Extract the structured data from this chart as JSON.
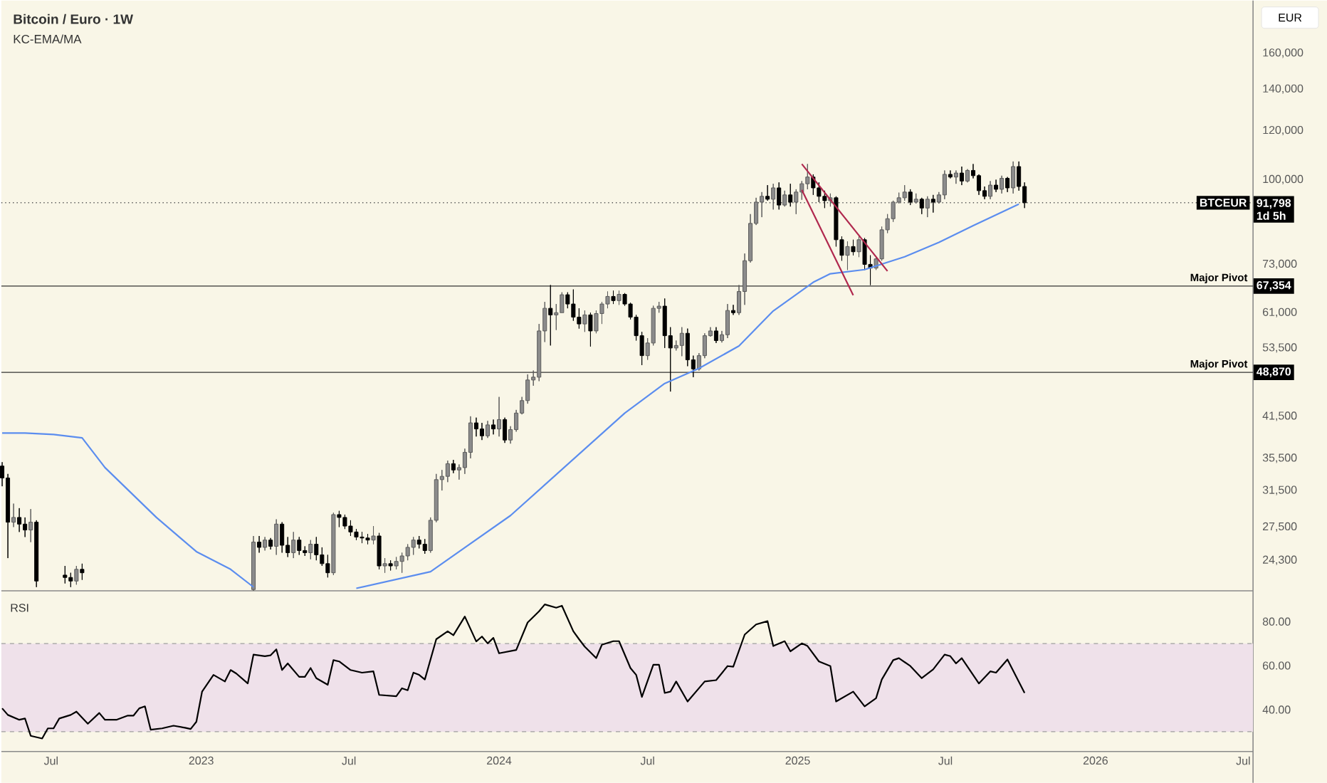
{
  "chart_data": [
    {
      "type": "candlestick",
      "title": "Bitcoin / Euro · 1W",
      "subtitle": "KC-EMA/MA",
      "ylabel": "EUR",
      "log": true,
      "tick_labels": "y",
      "xlim": [
        "2022-05-01",
        "2026-07-13"
      ],
      "ylim": [
        21700,
        194600
      ],
      "yticks": [
        {
          "value": 24300,
          "label": "24,300"
        },
        {
          "value": 27500,
          "label": "27,500"
        },
        {
          "value": 31500,
          "label": "31,500"
        },
        {
          "value": 35500,
          "label": "35,500"
        },
        {
          "value": 41500,
          "label": "41,500"
        },
        {
          "value": 53500,
          "label": "53,500"
        },
        {
          "value": 61000,
          "label": "61,000"
        },
        {
          "value": 73000,
          "label": "73,000"
        },
        {
          "value": 100000,
          "label": "100,000"
        },
        {
          "value": 120000,
          "label": "120,000"
        },
        {
          "value": 140000,
          "label": "140,000"
        },
        {
          "value": 160000,
          "label": "160,000"
        }
      ],
      "x": [
        "2022-05-02",
        "2022-05-09",
        "2022-05-16",
        "2022-05-23",
        "2022-05-30",
        "2022-06-06",
        "2022-06-13",
        "2022-07-18",
        "2022-07-25",
        "2022-08-01",
        "2022-08-08",
        "2023-03-06",
        "2023-03-13",
        "2023-03-20",
        "2023-03-27",
        "2023-04-03",
        "2023-04-10",
        "2023-04-17",
        "2023-04-24",
        "2023-05-01",
        "2023-05-08",
        "2023-05-15",
        "2023-05-22",
        "2023-05-29",
        "2023-06-05",
        "2023-06-12",
        "2023-06-19",
        "2023-06-26",
        "2023-07-03",
        "2023-07-10",
        "2023-07-17",
        "2023-07-24",
        "2023-07-31",
        "2023-08-07",
        "2023-08-14",
        "2023-08-21",
        "2023-08-28",
        "2023-09-04",
        "2023-09-11",
        "2023-09-18",
        "2023-09-25",
        "2023-10-02",
        "2023-10-09",
        "2023-10-16",
        "2023-10-23",
        "2023-10-30",
        "2023-11-06",
        "2023-11-13",
        "2023-11-20",
        "2023-11-27",
        "2023-12-04",
        "2023-12-11",
        "2023-12-18",
        "2023-12-25",
        "2024-01-01",
        "2024-01-08",
        "2024-01-15",
        "2024-01-22",
        "2024-01-29",
        "2024-02-05",
        "2024-02-12",
        "2024-02-19",
        "2024-02-26",
        "2024-03-04",
        "2024-03-11",
        "2024-03-18",
        "2024-03-25",
        "2024-04-01",
        "2024-04-08",
        "2024-04-15",
        "2024-04-22",
        "2024-04-29",
        "2024-05-06",
        "2024-05-13",
        "2024-05-20",
        "2024-05-27",
        "2024-06-03",
        "2024-06-10",
        "2024-06-17",
        "2024-06-24",
        "2024-07-01",
        "2024-07-08",
        "2024-07-15",
        "2024-07-22",
        "2024-07-29",
        "2024-08-05",
        "2024-08-12",
        "2024-08-19",
        "2024-08-26",
        "2024-09-02",
        "2024-09-09",
        "2024-09-16",
        "2024-09-23",
        "2024-09-30",
        "2024-10-07",
        "2024-10-14",
        "2024-10-21",
        "2024-10-28",
        "2024-11-04",
        "2024-11-11",
        "2024-11-18",
        "2024-11-25",
        "2024-12-02",
        "2024-12-09",
        "2024-12-16",
        "2024-12-23",
        "2024-12-30",
        "2025-01-06",
        "2025-01-13",
        "2025-01-20",
        "2025-01-27",
        "2025-02-03",
        "2025-02-10",
        "2025-02-17",
        "2025-02-24",
        "2025-03-03",
        "2025-03-10",
        "2025-03-17",
        "2025-03-24",
        "2025-03-31",
        "2025-04-07",
        "2025-04-14",
        "2025-04-21",
        "2025-04-28",
        "2025-05-05",
        "2025-05-12",
        "2025-05-19",
        "2025-05-26",
        "2025-06-02",
        "2025-06-09",
        "2025-06-16",
        "2025-06-23",
        "2025-06-30",
        "2025-07-07",
        "2025-07-14",
        "2025-07-21",
        "2025-07-28",
        "2025-08-04",
        "2025-08-11",
        "2025-08-18",
        "2025-08-25",
        "2025-09-01",
        "2025-09-08",
        "2025-09-15",
        "2025-09-22",
        "2025-09-29",
        "2025-10-06"
      ],
      "ohlc": [
        [
          34500,
          35000,
          32000,
          33000
        ],
        [
          33000,
          33500,
          24500,
          28000
        ],
        [
          28000,
          30000,
          27500,
          28500
        ],
        [
          28500,
          29500,
          27000,
          27800
        ],
        [
          27800,
          28500,
          26500,
          27200
        ],
        [
          27200,
          29400,
          26000,
          28000
        ],
        [
          28000,
          28200,
          22000,
          22500
        ],
        [
          23000,
          23800,
          22300,
          22800
        ],
        [
          22800,
          23200,
          22000,
          22500
        ],
        [
          22500,
          23800,
          22200,
          23500
        ],
        [
          23500,
          24000,
          22600,
          23200
        ],
        [
          21800,
          26600,
          21700,
          26000
        ],
        [
          26000,
          26600,
          25000,
          25500
        ],
        [
          25500,
          26500,
          25200,
          26200
        ],
        [
          26200,
          26400,
          25300,
          25600
        ],
        [
          25600,
          28300,
          24800,
          27800
        ],
        [
          27800,
          28000,
          25000,
          25700
        ],
        [
          25700,
          26500,
          24600,
          25000
        ],
        [
          25000,
          27000,
          24500,
          26200
        ],
        [
          26200,
          26500,
          24800,
          25200
        ],
        [
          25200,
          25600,
          24700,
          25000
        ],
        [
          25000,
          26200,
          24400,
          25800
        ],
        [
          25800,
          26500,
          24300,
          24800
        ],
        [
          24800,
          25500,
          23800,
          24000
        ],
        [
          24000,
          24800,
          22800,
          23200
        ],
        [
          23200,
          29000,
          23000,
          28800
        ],
        [
          28800,
          29200,
          27500,
          28500
        ],
        [
          28500,
          28800,
          27300,
          27600
        ],
        [
          27600,
          28200,
          26600,
          27000
        ],
        [
          27000,
          27300,
          26200,
          26500
        ],
        [
          26500,
          27000,
          25900,
          26400
        ],
        [
          26400,
          26800,
          25800,
          26200
        ],
        [
          26200,
          27600,
          25800,
          26600
        ],
        [
          26600,
          26900,
          23500,
          23800
        ],
        [
          23800,
          24500,
          23200,
          24000
        ],
        [
          24000,
          24300,
          23400,
          23800
        ],
        [
          23800,
          24600,
          23500,
          24200
        ],
        [
          24200,
          25000,
          23200,
          24700
        ],
        [
          24700,
          25800,
          24300,
          25500
        ],
        [
          25500,
          26500,
          24800,
          26200
        ],
        [
          26200,
          26600,
          25400,
          25800
        ],
        [
          25800,
          26300,
          24900,
          25200
        ],
        [
          25200,
          28500,
          25000,
          28200
        ],
        [
          28200,
          33500,
          28000,
          32800
        ],
        [
          32800,
          34000,
          31500,
          33200
        ],
        [
          33200,
          35200,
          32500,
          34800
        ],
        [
          34800,
          35300,
          33600,
          34000
        ],
        [
          34000,
          34700,
          32800,
          34300
        ],
        [
          34300,
          36800,
          33500,
          36300
        ],
        [
          36300,
          41500,
          35500,
          40500
        ],
        [
          40500,
          41300,
          38500,
          39600
        ],
        [
          39600,
          40500,
          38000,
          38600
        ],
        [
          38600,
          40800,
          38300,
          40200
        ],
        [
          40200,
          41000,
          38800,
          39600
        ],
        [
          39600,
          44600,
          38500,
          41000
        ],
        [
          41000,
          41300,
          37600,
          38000
        ],
        [
          38000,
          40000,
          37500,
          39500
        ],
        [
          39500,
          42500,
          39200,
          42000
        ],
        [
          42000,
          44600,
          41800,
          44000
        ],
        [
          44000,
          48500,
          43500,
          47500
        ],
        [
          47500,
          49200,
          46500,
          48000
        ],
        [
          48000,
          58500,
          47300,
          57000
        ],
        [
          57000,
          63500,
          54700,
          62000
        ],
        [
          62000,
          67600,
          54000,
          60500
        ],
        [
          60500,
          63000,
          57200,
          61000
        ],
        [
          61000,
          65800,
          61000,
          65200
        ],
        [
          65200,
          65800,
          62000,
          63000
        ],
        [
          63000,
          66500,
          59200,
          60000
        ],
        [
          60000,
          62000,
          57500,
          58500
        ],
        [
          58500,
          61500,
          56800,
          60500
        ],
        [
          60500,
          61000,
          53800,
          57000
        ],
        [
          57000,
          61500,
          56500,
          60800
        ],
        [
          60800,
          63500,
          58500,
          63000
        ],
        [
          63000,
          66000,
          62000,
          64800
        ],
        [
          64800,
          66200,
          63000,
          63800
        ],
        [
          63800,
          66200,
          62800,
          65300
        ],
        [
          65300,
          65600,
          62600,
          63000
        ],
        [
          63000,
          63300,
          59500,
          60000
        ],
        [
          60000,
          60500,
          55000,
          56000
        ],
        [
          56000,
          56800,
          50200,
          52000
        ],
        [
          52000,
          55500,
          51200,
          54500
        ],
        [
          54500,
          62600,
          54000,
          62000
        ],
        [
          62000,
          63500,
          61000,
          62500
        ],
        [
          62500,
          64300,
          53500,
          56000
        ],
        [
          56000,
          57800,
          45500,
          53500
        ],
        [
          53500,
          55000,
          53000,
          54000
        ],
        [
          54000,
          57800,
          51900,
          56500
        ],
        [
          56500,
          57500,
          50000,
          51200
        ],
        [
          51200,
          52000,
          48000,
          49500
        ],
        [
          49500,
          52500,
          49200,
          52000
        ],
        [
          52000,
          56500,
          51500,
          56000
        ],
        [
          56000,
          57800,
          55800,
          57000
        ],
        [
          57000,
          57800,
          54500,
          55000
        ],
        [
          55000,
          57000,
          54600,
          56200
        ],
        [
          56200,
          63000,
          55500,
          61500
        ],
        [
          61500,
          62800,
          60500,
          61000
        ],
        [
          61000,
          67600,
          60500,
          66000
        ],
        [
          66000,
          76000,
          62800,
          74000
        ],
        [
          74000,
          88000,
          73500,
          85000
        ],
        [
          85000,
          93500,
          84500,
          92000
        ],
        [
          92000,
          95500,
          87000,
          94000
        ],
        [
          94000,
          98000,
          92500,
          93000
        ],
        [
          93000,
          98500,
          89500,
          97000
        ],
        [
          97000,
          99000,
          89500,
          91000
        ],
        [
          91000,
          96000,
          90500,
          94500
        ],
        [
          94500,
          98500,
          90500,
          92000
        ],
        [
          92000,
          96500,
          88000,
          95500
        ],
        [
          95500,
          99500,
          92800,
          98500
        ],
        [
          98500,
          106000,
          96500,
          101000
        ],
        [
          101000,
          102000,
          94500,
          97000
        ],
        [
          97000,
          99000,
          92000,
          94000
        ],
        [
          94000,
          96000,
          90000,
          92500
        ],
        [
          92500,
          95000,
          90500,
          93500
        ],
        [
          93500,
          94000,
          78000,
          80000
        ],
        [
          80000,
          81000,
          74000,
          75500
        ],
        [
          75500,
          79500,
          71500,
          78000
        ],
        [
          78000,
          80000,
          75500,
          76500
        ],
        [
          76500,
          81000,
          75000,
          80000
        ],
        [
          80000,
          80500,
          71500,
          73000
        ],
        [
          73000,
          75500,
          67600,
          72000
        ],
        [
          72000,
          75000,
          71500,
          74500
        ],
        [
          74500,
          84000,
          74000,
          83000
        ],
        [
          83000,
          88000,
          82000,
          86500
        ],
        [
          86500,
          92500,
          85500,
          92000
        ],
        [
          92000,
          95300,
          91500,
          93500
        ],
        [
          93500,
          98000,
          92500,
          95500
        ],
        [
          95500,
          96500,
          91000,
          92000
        ],
        [
          92000,
          95000,
          91500,
          93000
        ],
        [
          93000,
          93500,
          88000,
          90000
        ],
        [
          90000,
          94000,
          87000,
          93000
        ],
        [
          93000,
          94500,
          88500,
          92000
        ],
        [
          92000,
          95500,
          91500,
          94500
        ],
        [
          94500,
          103500,
          93000,
          102000
        ],
        [
          102000,
          103500,
          100500,
          101000
        ],
        [
          101000,
          103500,
          98500,
          102500
        ],
        [
          102500,
          105000,
          98000,
          99500
        ],
        [
          99500,
          104000,
          99000,
          103500
        ],
        [
          103500,
          106000,
          100500,
          101500
        ],
        [
          101500,
          102000,
          94500,
          96000
        ],
        [
          96000,
          97500,
          93000,
          94000
        ],
        [
          94000,
          99500,
          93000,
          98000
        ],
        [
          98000,
          100000,
          95500,
          96500
        ],
        [
          96500,
          101500,
          95000,
          100500
        ],
        [
          100500,
          101000,
          95500,
          97000
        ],
        [
          97000,
          107000,
          95000,
          105000
        ],
        [
          105000,
          107000,
          96000,
          97500
        ],
        [
          97500,
          99000,
          90000,
          91798
        ]
      ],
      "series": [
        {
          "type": "line",
          "color": "#5b8def",
          "x": [
            "2022-05-02",
            "2022-05-30",
            "2022-07-04",
            "2022-08-08",
            "2022-09-05",
            "2022-11-07",
            "2022-12-26",
            "2023-02-06",
            "2023-03-06",
            "2023-04-17",
            "2023-07-10",
            "2023-10-09",
            "2024-01-15",
            "2024-06-03",
            "2024-07-22",
            "2024-09-02",
            "2024-10-21",
            "2024-12-02",
            "2025-01-20",
            "2025-02-10",
            "2025-03-24",
            "2025-05-12",
            "2025-06-23",
            "2025-08-04",
            "2025-09-29"
          ],
          "values": [
            39000,
            39000,
            38800,
            38300,
            34300,
            28500,
            25100,
            23500,
            22000,
            null,
            21900,
            23300,
            28700,
            42000,
            46900,
            49600,
            53900,
            61400,
            68300,
            70500,
            71600,
            75100,
            79200,
            84300,
            91300
          ]
        },
        {
          "type": "line",
          "color": "#b0284e",
          "x": [
            "2025-01-06",
            "2025-04-21"
          ],
          "values": [
            106000,
            71200
          ]
        },
        {
          "type": "line",
          "color": "#b0284e",
          "x": [
            "2025-01-06",
            "2025-03-10"
          ],
          "values": [
            96300,
            65100
          ]
        }
      ],
      "ref_lines": [
        {
          "axis": "y",
          "value": 91798,
          "label": "91,798",
          "color": "#555555",
          "line_style": "dotted"
        },
        {
          "axis": "y",
          "value": 67354,
          "label": "67,354",
          "color": "#333333",
          "line_style": "solid"
        },
        {
          "axis": "y",
          "value": 48870,
          "label": "48,870",
          "color": "#333333",
          "line_style": "solid"
        }
      ],
      "annotations": [
        "BTCEUR",
        "1d 5h",
        "Major Pivot",
        "Major Pivot"
      ]
    },
    {
      "type": "line",
      "title": "RSI",
      "color": "#000000",
      "xlim": [
        "2022-05-01",
        "2026-07-13"
      ],
      "ylim": [
        21,
        94
      ],
      "yticks": [
        {
          "value": 40,
          "label": "40.00"
        },
        {
          "value": 60,
          "label": "60.00"
        },
        {
          "value": 80,
          "label": "80.00"
        }
      ],
      "xticks": [
        {
          "value": "2022-07-01",
          "label": "Jul"
        },
        {
          "value": "2023-01-01",
          "label": "2023"
        },
        {
          "value": "2023-07-01",
          "label": "Jul"
        },
        {
          "value": "2024-01-01",
          "label": "2024"
        },
        {
          "value": "2024-07-01",
          "label": "Jul"
        },
        {
          "value": "2025-01-01",
          "label": "2025"
        },
        {
          "value": "2025-07-01",
          "label": "Jul"
        },
        {
          "value": "2026-01-01",
          "label": "2026"
        },
        {
          "value": "2026-07-01",
          "label": "Jul"
        }
      ],
      "bands": [
        {
          "axis": "y",
          "from": 30,
          "to": 70,
          "color": "#efe1ea"
        }
      ],
      "ref_lines": [
        {
          "axis": "y",
          "value": 70,
          "color": "#9e9e9e",
          "line_style": "dashed"
        },
        {
          "axis": "y",
          "value": 30,
          "color": "#9e9e9e",
          "line_style": "dashed"
        }
      ],
      "x": [
        "2022-05-02",
        "2022-05-09",
        "2022-05-23",
        "2022-05-30",
        "2022-06-06",
        "2022-06-20",
        "2022-06-27",
        "2022-07-04",
        "2022-07-11",
        "2022-07-25",
        "2022-08-01",
        "2022-08-15",
        "2022-08-29",
        "2022-09-05",
        "2022-09-19",
        "2022-10-03",
        "2022-10-10",
        "2022-10-17",
        "2022-10-24",
        "2022-10-31",
        "2022-11-14",
        "2022-11-28",
        "2022-12-12",
        "2022-12-19",
        "2022-12-26",
        "2023-01-02",
        "2023-01-16",
        "2023-01-30",
        "2023-02-06",
        "2023-02-13",
        "2023-02-27",
        "2023-03-06",
        "2023-03-20",
        "2023-03-27",
        "2023-04-03",
        "2023-04-10",
        "2023-04-17",
        "2023-05-01",
        "2023-05-08",
        "2023-05-15",
        "2023-05-22",
        "2023-06-05",
        "2023-06-12",
        "2023-06-19",
        "2023-07-03",
        "2023-07-17",
        "2023-07-31",
        "2023-08-07",
        "2023-08-28",
        "2023-09-04",
        "2023-09-11",
        "2023-09-18",
        "2023-09-25",
        "2023-10-02",
        "2023-10-16",
        "2023-10-30",
        "2023-11-06",
        "2023-11-20",
        "2023-12-04",
        "2023-12-11",
        "2023-12-18",
        "2023-12-25",
        "2024-01-01",
        "2024-01-22",
        "2024-02-05",
        "2024-02-19",
        "2024-02-26",
        "2024-03-11",
        "2024-03-18",
        "2024-04-01",
        "2024-04-08",
        "2024-04-15",
        "2024-04-29",
        "2024-05-06",
        "2024-05-20",
        "2024-05-27",
        "2024-06-10",
        "2024-06-17",
        "2024-06-24",
        "2024-07-08",
        "2024-07-15",
        "2024-07-22",
        "2024-07-29",
        "2024-08-05",
        "2024-08-19",
        "2024-09-09",
        "2024-09-23",
        "2024-10-07",
        "2024-10-14",
        "2024-10-28",
        "2024-11-11",
        "2024-11-25",
        "2024-12-02",
        "2024-12-16",
        "2024-12-23",
        "2025-01-06",
        "2025-01-13",
        "2025-01-27",
        "2025-02-10",
        "2025-02-17",
        "2025-03-10",
        "2025-03-24",
        "2025-04-07",
        "2025-04-14",
        "2025-04-28",
        "2025-05-05",
        "2025-05-19",
        "2025-06-02",
        "2025-06-16",
        "2025-06-30",
        "2025-07-07",
        "2025-07-14",
        "2025-07-21",
        "2025-08-11",
        "2025-08-25",
        "2025-09-01",
        "2025-09-15",
        "2025-10-06"
      ],
      "values": [
        40.6,
        37.6,
        35.4,
        36.0,
        28.1,
        26.9,
        31.5,
        31.5,
        36.0,
        37.6,
        39.1,
        33.6,
        38.5,
        35.4,
        35.4,
        37.3,
        37.3,
        40.6,
        41.5,
        30.9,
        31.5,
        32.7,
        31.8,
        31.2,
        34.5,
        48.2,
        55.8,
        52.8,
        58.0,
        56.4,
        51.9,
        65.0,
        64.3,
        64.7,
        67.4,
        58.0,
        61.0,
        54.9,
        54.9,
        58.9,
        54.3,
        51.3,
        62.5,
        61.9,
        58.0,
        56.8,
        57.4,
        46.7,
        46.1,
        49.7,
        48.8,
        56.8,
        55.8,
        53.7,
        72.0,
        75.6,
        73.8,
        82.3,
        71.0,
        73.2,
        70.1,
        72.6,
        65.6,
        67.1,
        79.6,
        84.7,
        87.8,
        86.3,
        87.2,
        75.6,
        72.0,
        68.6,
        63.4,
        69.5,
        71.1,
        71.1,
        58.9,
        55.8,
        45.8,
        60.4,
        60.4,
        47.6,
        48.2,
        52.8,
        43.7,
        52.8,
        53.4,
        59.8,
        59.5,
        74.1,
        78.7,
        80.2,
        68.9,
        71.1,
        66.5,
        70.1,
        68.9,
        61.9,
        59.8,
        43.7,
        48.2,
        41.5,
        45.2,
        53.7,
        62.5,
        63.4,
        59.8,
        54.3,
        58.3,
        65.0,
        64.3,
        61.0,
        63.4,
        51.9,
        57.4,
        56.8,
        62.8,
        47.6
      ]
    }
  ]
}
